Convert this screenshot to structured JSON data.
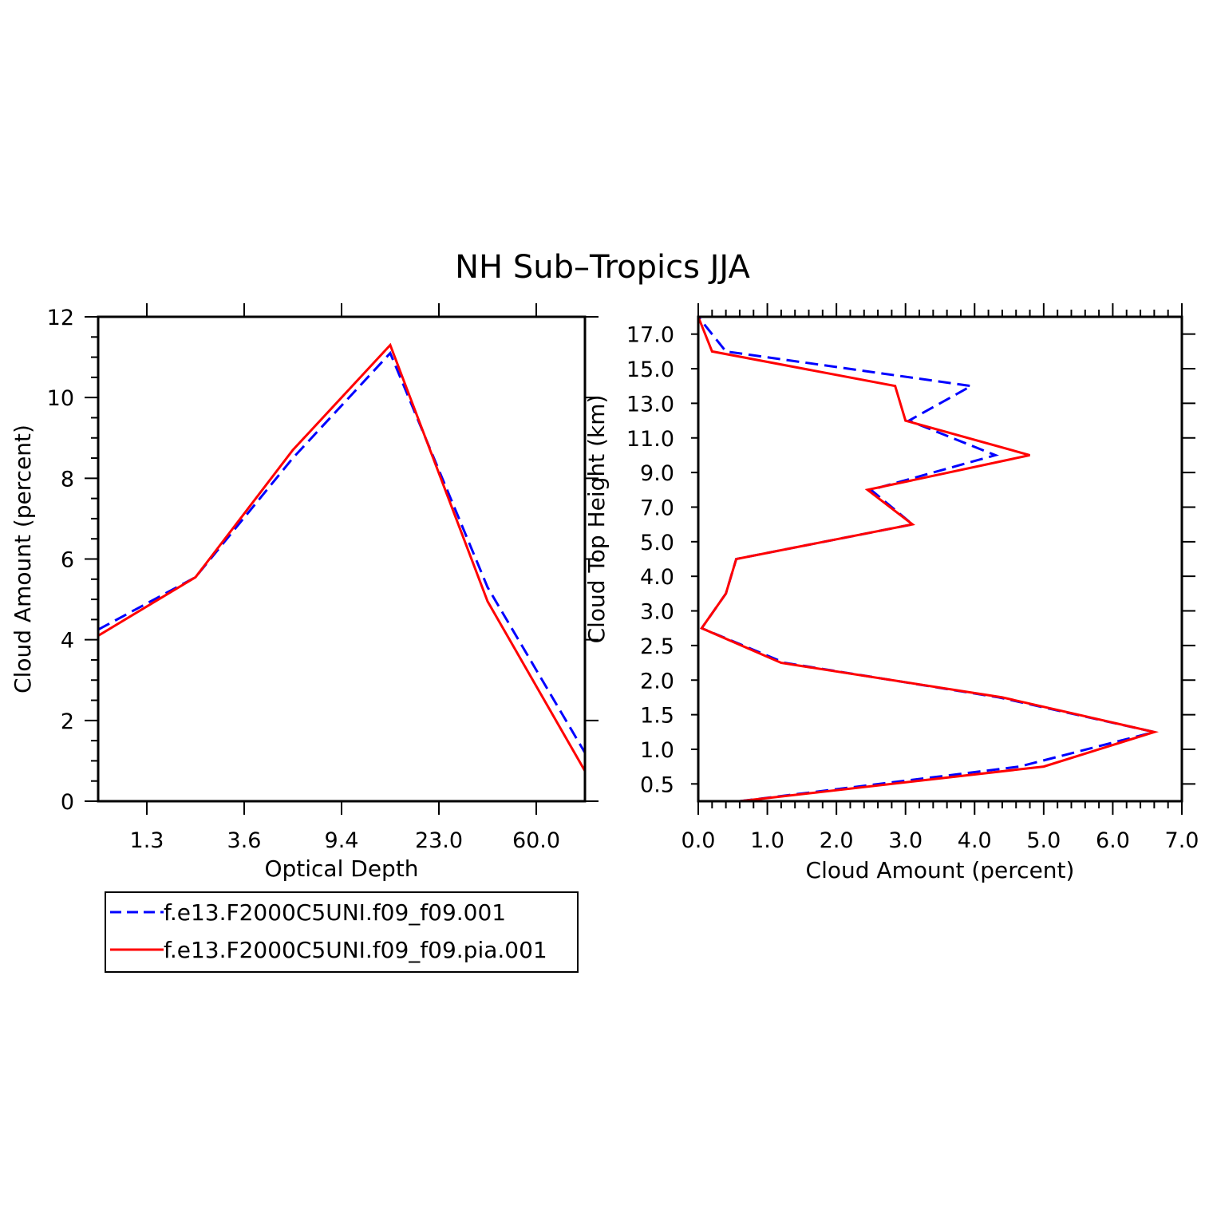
{
  "title": "NH Sub–Tropics JJA",
  "colors": {
    "series_a": "#0000ff",
    "series_b": "#ff0000",
    "axis": "#000000"
  },
  "legend": {
    "items": [
      {
        "label": "f.e13.F2000C5UNI.f09_f09.001",
        "style": "dashed",
        "color": "#0000ff"
      },
      {
        "label": "f.e13.F2000C5UNI.f09_f09.pia.001",
        "style": "solid",
        "color": "#ff0000"
      }
    ]
  },
  "chart_data": [
    {
      "type": "line",
      "xlabel": "Optical Depth",
      "ylabel": "Cloud Amount (percent)",
      "xlim": [
        0,
        10
      ],
      "ylim": [
        0,
        12
      ],
      "x_tick_positions": [
        1,
        3,
        5,
        7,
        9
      ],
      "x_tick_labels": [
        "1.3",
        "3.6",
        "9.4",
        "23.0",
        "60.0"
      ],
      "y_ticks": [
        0,
        2,
        4,
        6,
        8,
        10,
        12
      ],
      "y_tick_labels": [
        "0",
        "2",
        "4",
        "6",
        "8",
        "10",
        "12"
      ],
      "x": [
        0,
        2,
        4,
        6,
        8,
        10
      ],
      "series": [
        {
          "name": "f.e13.F2000C5UNI.f09_f09.001",
          "values": [
            4.25,
            5.55,
            8.5,
            11.1,
            5.3,
            1.2
          ]
        },
        {
          "name": "f.e13.F2000C5UNI.f09_f09.pia.001",
          "values": [
            4.1,
            5.55,
            8.7,
            11.3,
            4.95,
            0.75
          ]
        }
      ]
    },
    {
      "type": "line",
      "xlabel": "Cloud Amount (percent)",
      "ylabel": "Cloud Top Height (km)",
      "xlim": [
        0,
        7
      ],
      "ylim": [
        0,
        14
      ],
      "x_ticks": [
        0,
        1,
        2,
        3,
        4,
        5,
        6,
        7
      ],
      "x_tick_labels": [
        "0.0",
        "1.0",
        "2.0",
        "3.0",
        "4.0",
        "5.0",
        "6.0",
        "7.0"
      ],
      "y_tick_positions": [
        0.5,
        1.5,
        2.5,
        3.5,
        4.5,
        5.5,
        6.5,
        7.5,
        8.5,
        9.5,
        10.5,
        11.5,
        12.5,
        13.5
      ],
      "y_tick_labels": [
        "0.5",
        "1.0",
        "1.5",
        "2.0",
        "2.5",
        "3.0",
        "4.0",
        "5.0",
        "7.0",
        "9.0",
        "11.0",
        "13.0",
        "15.0",
        "17.0"
      ],
      "y": [
        0,
        1,
        2,
        3,
        4,
        5,
        6,
        7,
        8,
        9,
        10,
        11,
        12,
        13,
        14
      ],
      "series": [
        {
          "name": "f.e13.F2000C5UNI.f09_f09.001",
          "values": [
            0.6,
            4.65,
            6.6,
            4.35,
            1.25,
            0.05,
            0.4,
            0.55,
            3.1,
            2.5,
            4.3,
            3.05,
            3.95,
            0.4,
            0.0
          ]
        },
        {
          "name": "f.e13.F2000C5UNI.f09_f09.pia.001",
          "values": [
            0.6,
            5.0,
            6.6,
            4.4,
            1.2,
            0.05,
            0.4,
            0.55,
            3.1,
            2.45,
            4.8,
            3.0,
            2.85,
            0.2,
            0.0
          ]
        }
      ]
    }
  ]
}
